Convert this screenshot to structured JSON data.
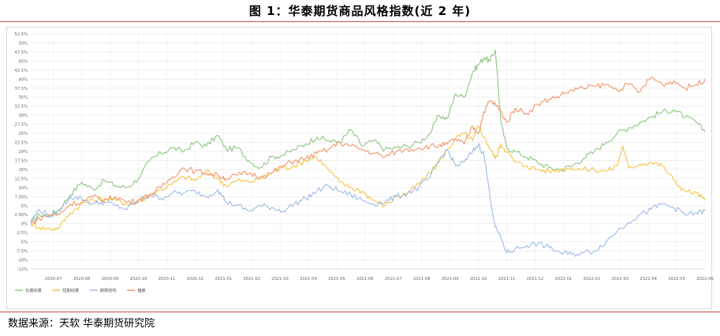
{
  "header": {
    "title": "图 1：华泰期货商品风格指数(近 2 年)"
  },
  "footer": {
    "source": "数据来源：天软  华泰期货研究院"
  },
  "chart_data": {
    "type": "line",
    "title": "",
    "xlabel": "",
    "ylabel": "",
    "ylim": [
      -12.5,
      52.5
    ],
    "ytick_labels": [
      "52.5%",
      "50%",
      "47.5%",
      "45%",
      "42.5%",
      "40%",
      "37.5%",
      "35%",
      "32.5%",
      "30%",
      "27.5%",
      "25%",
      "22.5%",
      "20%",
      "17.5%",
      "15%",
      "12.5%",
      "10%",
      "7.50%",
      "5%",
      "2.50%",
      "0%",
      "-2.5%",
      "-5%",
      "-7.5%",
      "-10%",
      "-12%"
    ],
    "ytick_values": [
      52.5,
      50,
      47.5,
      45,
      42.5,
      40,
      37.5,
      35,
      32.5,
      30,
      27.5,
      25,
      22.5,
      20,
      17.5,
      15,
      12.5,
      10,
      7.5,
      5,
      2.5,
      0,
      -2.5,
      -5,
      -7.5,
      -10,
      -12.5
    ],
    "x_labels": [
      "2020-07",
      "2020-08",
      "2020-09",
      "2020-10",
      "2020-11",
      "2020-12",
      "2021-01",
      "2021-02",
      "2021-03",
      "2021-04",
      "2021-05",
      "2021-06",
      "2021-07",
      "2021-08",
      "2021-09",
      "2021-10",
      "2021-11",
      "2021-12",
      "2022-01",
      "2022-02",
      "2022-03",
      "2022-04",
      "2022-05",
      "2022-06"
    ],
    "x_positions": [
      1,
      2,
      3,
      4,
      5,
      6,
      7,
      8,
      9,
      10,
      11,
      12,
      13,
      14,
      15,
      16,
      17,
      18,
      19,
      20,
      21,
      22,
      23,
      24
    ],
    "xlim": [
      0.2,
      24
    ],
    "grid": true,
    "legend_position": "bottom-left",
    "series": [
      {
        "name": "长期动量",
        "color": "#8fc484",
        "x": [
          0.2,
          0.5,
          0.9,
          1.2,
          1.6,
          2.0,
          2.4,
          2.8,
          3.2,
          3.6,
          4.0,
          4.4,
          4.8,
          5.2,
          5.6,
          6.0,
          6.4,
          6.8,
          7.1,
          7.5,
          7.9,
          8.3,
          8.7,
          9.1,
          9.5,
          9.9,
          10.3,
          10.7,
          11.1,
          11.5,
          11.9,
          12.3,
          12.7,
          13.1,
          13.5,
          13.9,
          14.3,
          14.6,
          14.9,
          15.2,
          15.5,
          15.8,
          16.0,
          16.2,
          16.4,
          16.6,
          16.8,
          17.0,
          17.3,
          17.7,
          18.1,
          18.5,
          18.9,
          19.3,
          19.7,
          20.1,
          20.5,
          20.9,
          21.3,
          21.7,
          22.1,
          22.5,
          22.9,
          23.3,
          23.7,
          24.0
        ],
        "y": [
          0.5,
          2.5,
          2.5,
          4.0,
          8.0,
          11.5,
          9.5,
          12.0,
          10.5,
          10.0,
          12.5,
          17.5,
          19.5,
          21.0,
          20.0,
          22.5,
          21.5,
          24.5,
          20.5,
          21.0,
          17.5,
          15.5,
          18.5,
          19.0,
          20.5,
          22.0,
          24.0,
          23.0,
          22.5,
          26.0,
          21.5,
          23.0,
          20.5,
          21.0,
          21.5,
          22.5,
          25.0,
          30.0,
          29.0,
          36.0,
          35.0,
          42.0,
          44.0,
          46.0,
          45.0,
          48.0,
          28.0,
          21.0,
          20.0,
          18.5,
          17.0,
          15.5,
          15.0,
          16.0,
          18.0,
          20.0,
          22.5,
          25.0,
          26.5,
          28.0,
          29.5,
          31.0,
          31.5,
          29.5,
          28.0,
          25.5
        ]
      },
      {
        "name": "短期动量",
        "color": "#f5c443",
        "x": [
          0.2,
          0.5,
          0.9,
          1.2,
          1.6,
          2.0,
          2.4,
          2.8,
          3.2,
          3.6,
          4.0,
          4.4,
          4.8,
          5.2,
          5.6,
          6.0,
          6.4,
          6.8,
          7.1,
          7.5,
          7.9,
          8.3,
          8.7,
          9.1,
          9.5,
          9.9,
          10.3,
          10.7,
          11.1,
          11.5,
          11.9,
          12.3,
          12.7,
          13.1,
          13.5,
          13.9,
          14.3,
          14.6,
          14.9,
          15.2,
          15.5,
          15.8,
          16.0,
          16.2,
          16.4,
          16.6,
          16.8,
          17.0,
          17.3,
          17.7,
          18.1,
          18.5,
          18.9,
          19.3,
          19.7,
          20.1,
          20.5,
          20.9,
          21.1,
          21.3,
          21.7,
          22.1,
          22.5,
          22.9,
          23.3,
          23.7,
          24.0
        ],
        "y": [
          0.0,
          -1.0,
          -1.5,
          -1.0,
          3.0,
          5.5,
          6.5,
          7.0,
          6.5,
          5.5,
          6.0,
          8.0,
          9.5,
          11.0,
          13.0,
          12.0,
          14.5,
          12.5,
          10.5,
          12.0,
          11.5,
          12.5,
          14.0,
          15.5,
          16.0,
          17.5,
          18.5,
          15.0,
          11.5,
          10.0,
          9.0,
          6.5,
          5.0,
          7.5,
          8.5,
          11.0,
          14.0,
          17.0,
          20.5,
          23.5,
          25.0,
          23.0,
          27.0,
          24.0,
          21.0,
          18.0,
          22.0,
          20.0,
          17.0,
          16.0,
          15.0,
          14.5,
          15.0,
          15.5,
          15.0,
          15.0,
          14.5,
          16.0,
          21.5,
          15.5,
          16.5,
          17.0,
          16.0,
          12.0,
          9.0,
          8.5,
          6.5
        ]
      },
      {
        "name": "期限结构",
        "color": "#9dbbe6",
        "x": [
          0.2,
          0.5,
          0.9,
          1.2,
          1.6,
          2.0,
          2.4,
          2.8,
          3.2,
          3.6,
          4.0,
          4.4,
          4.8,
          5.2,
          5.6,
          6.0,
          6.4,
          6.8,
          7.1,
          7.5,
          7.9,
          8.3,
          8.7,
          9.1,
          9.5,
          9.9,
          10.3,
          10.7,
          11.1,
          11.5,
          11.9,
          12.3,
          12.7,
          13.1,
          13.5,
          13.9,
          14.3,
          14.6,
          14.9,
          15.2,
          15.5,
          15.8,
          16.0,
          16.2,
          16.4,
          16.6,
          16.8,
          17.0,
          17.3,
          17.7,
          18.1,
          18.5,
          18.9,
          19.3,
          19.7,
          20.1,
          20.5,
          20.9,
          21.3,
          21.7,
          22.1,
          22.5,
          22.9,
          23.3,
          23.7,
          24.0
        ],
        "y": [
          0.5,
          4.0,
          2.0,
          3.5,
          7.5,
          7.0,
          5.5,
          6.0,
          5.0,
          4.0,
          6.5,
          8.0,
          7.0,
          8.5,
          8.5,
          9.0,
          7.5,
          9.5,
          6.0,
          5.0,
          3.5,
          5.0,
          4.5,
          3.5,
          5.5,
          7.0,
          9.0,
          10.5,
          9.0,
          8.0,
          6.5,
          5.5,
          6.0,
          7.5,
          8.5,
          10.0,
          13.0,
          17.5,
          20.5,
          16.0,
          17.0,
          20.0,
          22.0,
          19.0,
          8.0,
          -1.0,
          -4.0,
          -8.0,
          -7.0,
          -6.0,
          -5.5,
          -6.5,
          -8.0,
          -8.5,
          -8.0,
          -7.5,
          -5.0,
          -2.0,
          0.5,
          2.5,
          4.0,
          5.5,
          4.5,
          2.5,
          3.0,
          3.5
        ]
      },
      {
        "name": "偏度",
        "color": "#f0956b",
        "x": [
          0.2,
          0.5,
          0.9,
          1.2,
          1.6,
          2.0,
          2.4,
          2.8,
          3.2,
          3.6,
          4.0,
          4.4,
          4.8,
          5.2,
          5.6,
          6.0,
          6.4,
          6.8,
          7.1,
          7.5,
          7.9,
          8.3,
          8.7,
          9.1,
          9.5,
          9.9,
          10.3,
          10.7,
          11.1,
          11.5,
          11.9,
          12.3,
          12.7,
          13.1,
          13.5,
          13.9,
          14.3,
          14.6,
          14.9,
          15.2,
          15.5,
          15.8,
          16.0,
          16.2,
          16.4,
          16.6,
          16.8,
          17.0,
          17.3,
          17.7,
          18.1,
          18.5,
          18.9,
          19.3,
          19.7,
          20.1,
          20.5,
          20.9,
          21.3,
          21.7,
          22.1,
          22.5,
          22.9,
          23.3,
          23.7,
          24.0
        ],
        "y": [
          0.0,
          1.5,
          2.5,
          2.5,
          5.5,
          6.0,
          7.5,
          6.5,
          7.5,
          6.0,
          6.5,
          8.0,
          10.0,
          13.0,
          15.5,
          14.5,
          14.0,
          13.5,
          12.5,
          13.5,
          14.0,
          13.0,
          14.0,
          16.0,
          17.5,
          18.0,
          19.5,
          20.5,
          22.5,
          21.5,
          20.5,
          19.5,
          18.5,
          20.0,
          20.5,
          21.0,
          21.5,
          21.5,
          22.0,
          23.5,
          22.0,
          27.0,
          25.0,
          31.0,
          34.0,
          33.0,
          31.0,
          28.0,
          32.0,
          30.5,
          33.0,
          34.5,
          35.5,
          37.0,
          37.5,
          38.0,
          38.5,
          37.0,
          38.5,
          36.5,
          40.5,
          38.5,
          39.5,
          37.5,
          38.5,
          40.0
        ]
      }
    ]
  }
}
